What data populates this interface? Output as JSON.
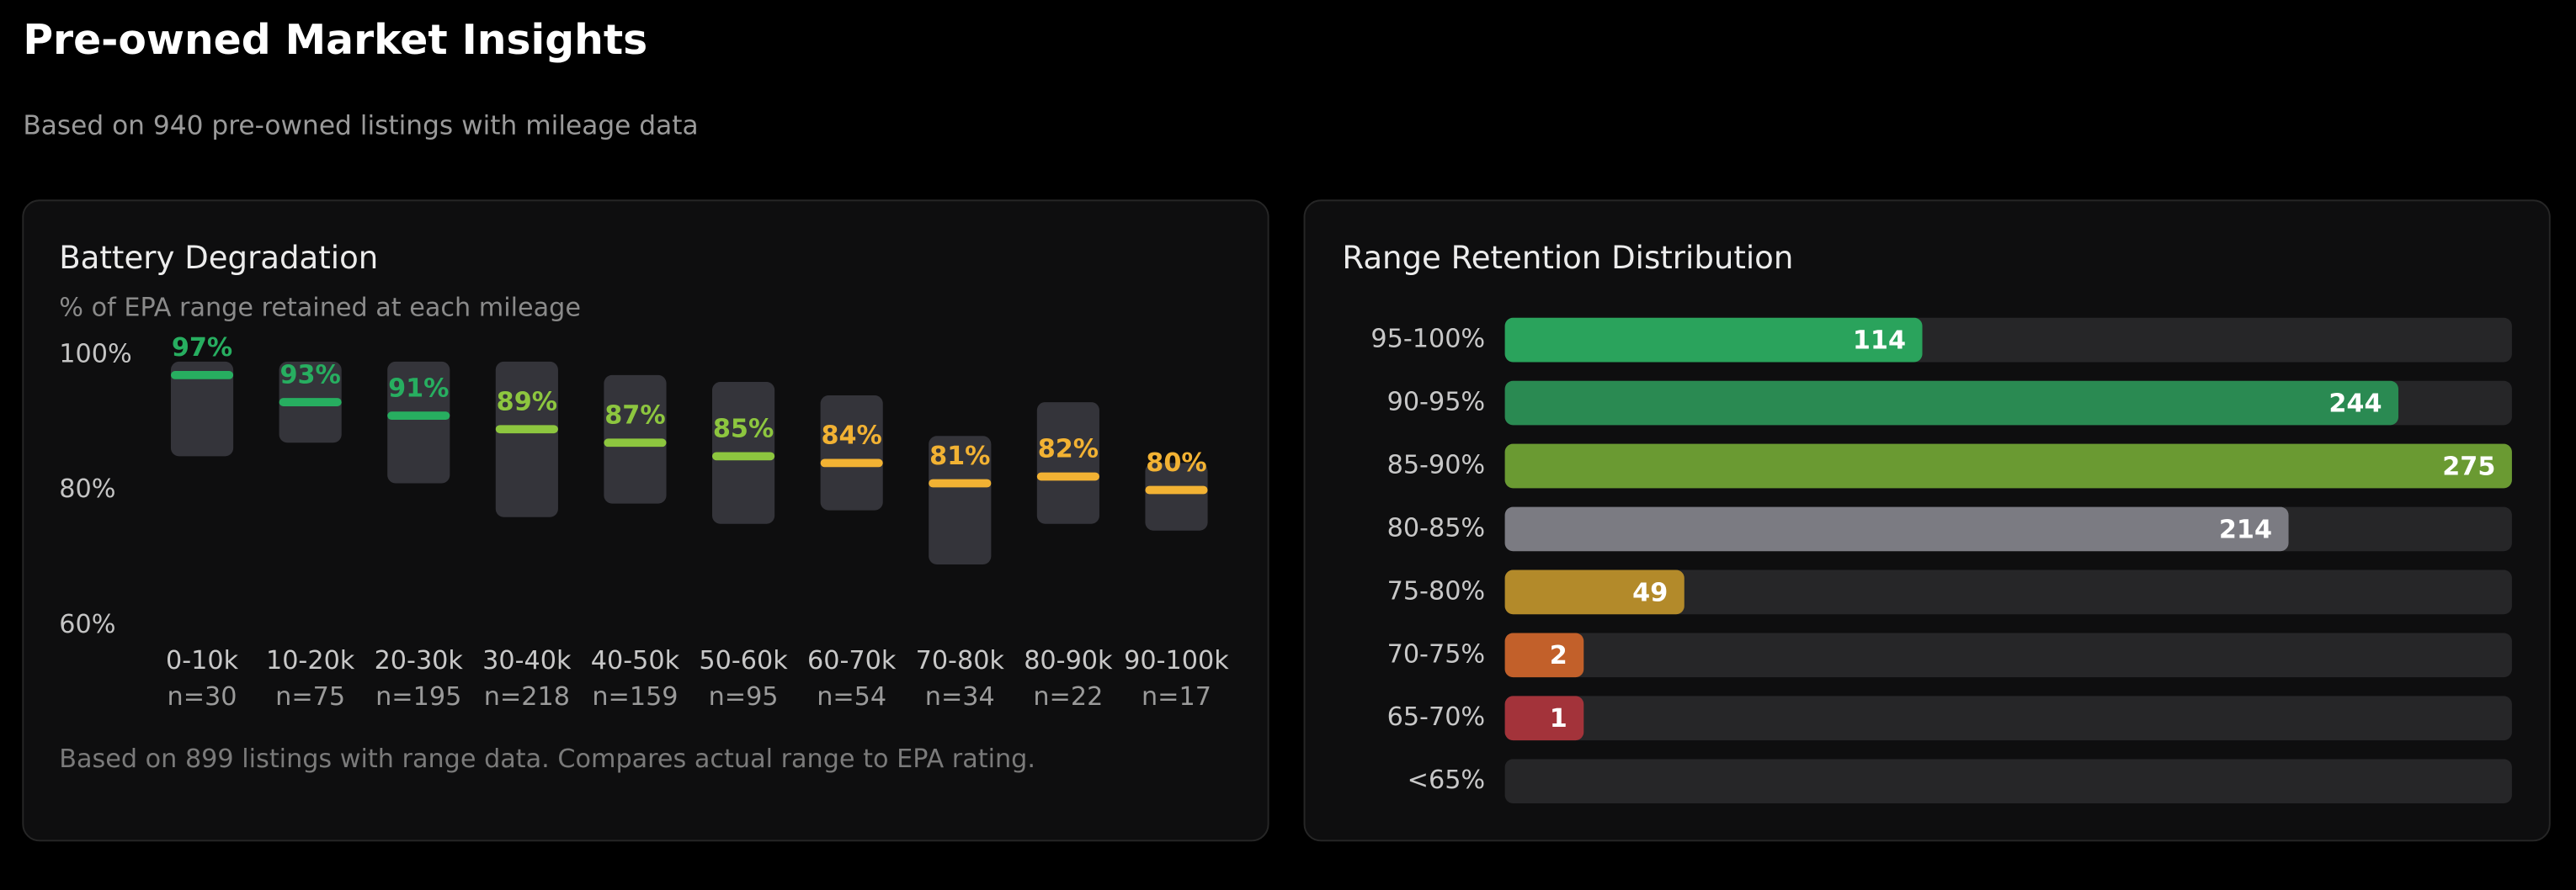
{
  "header": {
    "title": "Pre-owned Market Insights",
    "subtitle": "Based on 940 pre-owned listings with mileage data"
  },
  "chart_data": [
    {
      "type": "range-box",
      "title": "Battery Degradation",
      "subtitle": "% of EPA range retained at each mileage",
      "categories": [
        "0-10k",
        "10-20k",
        "20-30k",
        "30-40k",
        "40-50k",
        "50-60k",
        "60-70k",
        "70-80k",
        "80-90k",
        "90-100k"
      ],
      "sample_labels": [
        "n=30",
        "n=75",
        "n=195",
        "n=218",
        "n=159",
        "n=95",
        "n=54",
        "n=34",
        "n=22",
        "n=17"
      ],
      "values": [
        97,
        93,
        91,
        89,
        87,
        85,
        84,
        81,
        82,
        80
      ],
      "value_labels": [
        "97%",
        "93%",
        "91%",
        "89%",
        "87%",
        "85%",
        "84%",
        "81%",
        "82%",
        "80%"
      ],
      "ranges": [
        [
          85,
          99
        ],
        [
          87,
          99
        ],
        [
          81,
          99
        ],
        [
          76,
          99
        ],
        [
          78,
          97
        ],
        [
          75,
          96
        ],
        [
          77,
          94
        ],
        [
          69,
          88
        ],
        [
          75,
          93
        ],
        [
          74,
          84
        ]
      ],
      "colors": [
        "#27ae60",
        "#27ae60",
        "#27ae60",
        "#8dc63f",
        "#8dc63f",
        "#8dc63f",
        "#f2b233",
        "#f2b233",
        "#f2b233",
        "#f2b233"
      ],
      "range_color": "#34343a",
      "ylim": [
        60,
        104
      ],
      "yticks": [
        {
          "value": 100,
          "label": "100%"
        },
        {
          "value": 80,
          "label": "80%"
        },
        {
          "value": 60,
          "label": "60%"
        }
      ],
      "note": "Based on 899 listings with range data. Compares actual range to EPA rating."
    },
    {
      "type": "hbar",
      "title": "Range Retention Distribution",
      "categories": [
        "95-100%",
        "90-95%",
        "85-90%",
        "80-85%",
        "75-80%",
        "70-75%",
        "65-70%",
        "<65%"
      ],
      "values": [
        114,
        244,
        275,
        214,
        49,
        2,
        1,
        0
      ],
      "value_labels": [
        "114",
        "244",
        "275",
        "214",
        "49",
        "2",
        "1",
        null
      ],
      "colors": [
        "#2aa35c",
        "#2a8a52",
        "#6a9a32",
        "#7b7b82",
        "#b38a2a",
        "#c2602a",
        "#a3333a",
        "#8b2a2a"
      ],
      "track_color": "#262628",
      "xlim": [
        0,
        275
      ]
    }
  ]
}
